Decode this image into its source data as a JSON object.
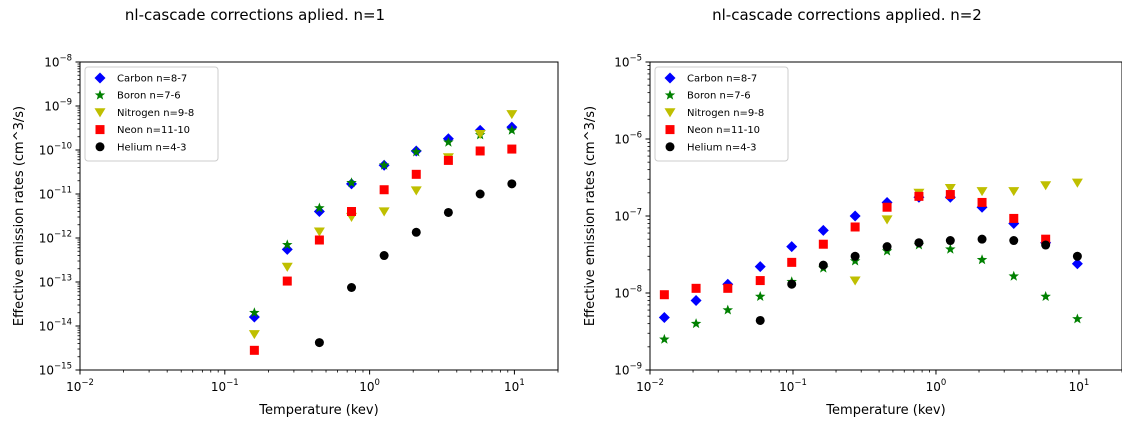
{
  "chart_data": [
    {
      "type": "scatter",
      "title": "nl-cascade corrections aplied. n=1",
      "xlabel": "Temperature (kev)",
      "ylabel": "Effective emission rates (cm^3/s)",
      "xscale": "log",
      "yscale": "log",
      "xlim": [
        0.01,
        20
      ],
      "ylim": [
        1e-15,
        1e-08
      ],
      "xticks": [
        {
          "base": "10",
          "exp": "−2",
          "value": 0.01
        },
        {
          "base": "10",
          "exp": "−1",
          "value": 0.1
        },
        {
          "base": "10",
          "exp": "0",
          "value": 1
        },
        {
          "base": "10",
          "exp": "1",
          "value": 10
        }
      ],
      "yticks": [
        {
          "base": "10",
          "exp": "−15",
          "value": 1e-15
        },
        {
          "base": "10",
          "exp": "−14",
          "value": 1e-14
        },
        {
          "base": "10",
          "exp": "−13",
          "value": 1e-13
        },
        {
          "base": "10",
          "exp": "−12",
          "value": 1e-12
        },
        {
          "base": "10",
          "exp": "−11",
          "value": 1e-11
        },
        {
          "base": "10",
          "exp": "−10",
          "value": 1e-10
        },
        {
          "base": "10",
          "exp": "−9",
          "value": 1e-09
        },
        {
          "base": "10",
          "exp": "−8",
          "value": 1e-08
        }
      ],
      "legend_position": "upper-left",
      "grid": false,
      "series": [
        {
          "name": "Carbon n=8-7",
          "marker": "diamond",
          "color": "#0000ff",
          "x": [
            0.16,
            0.27,
            0.45,
            0.75,
            1.26,
            2.1,
            3.5,
            5.8,
            9.6
          ],
          "y": [
            1.6e-14,
            5.5e-13,
            4e-12,
            1.7e-11,
            4.5e-11,
            9.5e-11,
            1.8e-10,
            2.8e-10,
            3.3e-10
          ]
        },
        {
          "name": "Boron n=7-6",
          "marker": "star",
          "color": "#008000",
          "x": [
            0.16,
            0.27,
            0.45,
            0.75,
            1.26,
            2.1,
            3.5,
            5.8,
            9.6
          ],
          "y": [
            2e-14,
            7e-13,
            4.8e-12,
            1.8e-11,
            4.5e-11,
            9e-11,
            1.5e-10,
            2.2e-10,
            2.8e-10
          ]
        },
        {
          "name": "Nitrogen n=9-8",
          "marker": "triangle-down",
          "color": "#bfbf00",
          "x": [
            0.16,
            0.27,
            0.45,
            0.75,
            1.26,
            2.1,
            3.5,
            5.8,
            9.6
          ],
          "y": [
            6.5e-15,
            2.2e-13,
            1.4e-12,
            3e-12,
            4e-12,
            1.2e-11,
            6.8e-11,
            2.3e-10,
            6.5e-10
          ]
        },
        {
          "name": "Neon n=11-10",
          "marker": "square",
          "color": "#ff0000",
          "x": [
            0.16,
            0.27,
            0.45,
            0.75,
            1.26,
            2.1,
            3.5,
            5.8,
            9.6
          ],
          "y": [
            2.8e-15,
            1.05e-13,
            9e-13,
            4e-12,
            1.25e-11,
            2.8e-11,
            5.8e-11,
            9.5e-11,
            1.05e-10
          ]
        },
        {
          "name": "Helium n=4-3",
          "marker": "circle",
          "color": "#000000",
          "x": [
            0.45,
            0.75,
            1.26,
            2.1,
            3.5,
            5.8,
            9.6
          ],
          "y": [
            4.2e-15,
            7.5e-14,
            4e-13,
            1.35e-12,
            3.8e-12,
            1e-11,
            1.7e-11
          ]
        }
      ]
    },
    {
      "type": "scatter",
      "title": "nl-cascade corrections applied. n=2",
      "xlabel": "Temperature (kev)",
      "ylabel": "Effective emission rates (cm^3/s)",
      "xscale": "log",
      "yscale": "log",
      "xlim": [
        0.01,
        20
      ],
      "ylim": [
        1e-09,
        1e-05
      ],
      "xticks": [
        {
          "base": "10",
          "exp": "−2",
          "value": 0.01
        },
        {
          "base": "10",
          "exp": "−1",
          "value": 0.1
        },
        {
          "base": "10",
          "exp": "0",
          "value": 1
        },
        {
          "base": "10",
          "exp": "1",
          "value": 10
        }
      ],
      "yticks": [
        {
          "base": "10",
          "exp": "−9",
          "value": 1e-09
        },
        {
          "base": "10",
          "exp": "−8",
          "value": 1e-08
        },
        {
          "base": "10",
          "exp": "−7",
          "value": 1e-07
        },
        {
          "base": "10",
          "exp": "−6",
          "value": 1e-06
        },
        {
          "base": "10",
          "exp": "−5",
          "value": 1e-05
        }
      ],
      "legend_position": "upper-left",
      "grid": false,
      "series": [
        {
          "name": "Carbon n=8-7",
          "marker": "diamond",
          "color": "#0000ff",
          "x": [
            0.0126,
            0.021,
            0.035,
            0.059,
            0.098,
            0.163,
            0.272,
            0.455,
            0.76,
            1.26,
            2.1,
            3.5,
            5.85,
            9.75
          ],
          "y": [
            4.8e-09,
            8e-09,
            1.3e-08,
            2.2e-08,
            4e-08,
            6.5e-08,
            1e-07,
            1.5e-07,
            1.75e-07,
            1.75e-07,
            1.3e-07,
            8e-08,
            4.5e-08,
            2.4e-08
          ]
        },
        {
          "name": "Boron n=7-6",
          "marker": "star",
          "color": "#008000",
          "x": [
            0.0126,
            0.021,
            0.035,
            0.059,
            0.098,
            0.163,
            0.272,
            0.455,
            0.76,
            1.26,
            2.1,
            3.5,
            5.85,
            9.75
          ],
          "y": [
            2.5e-09,
            4e-09,
            6e-09,
            9e-09,
            1.4e-08,
            2.1e-08,
            2.6e-08,
            3.5e-08,
            4.2e-08,
            3.7e-08,
            2.7e-08,
            1.65e-08,
            9e-09,
            4.6e-09
          ]
        },
        {
          "name": "Nitrogen n=9-8",
          "marker": "triangle-down",
          "color": "#bfbf00",
          "x": [
            0.272,
            0.455,
            0.76,
            1.26,
            2.1,
            3.5,
            5.85,
            9.75
          ],
          "y": [
            1.45e-08,
            9e-08,
            2e-07,
            2.3e-07,
            2.1e-07,
            2.1e-07,
            2.5e-07,
            2.7e-07
          ]
        },
        {
          "name": "Neon n=11-10",
          "marker": "square",
          "color": "#ff0000",
          "x": [
            0.0126,
            0.021,
            0.035,
            0.059,
            0.098,
            0.163,
            0.272,
            0.455,
            0.76,
            1.26,
            2.1,
            3.5,
            5.85
          ],
          "y": [
            9.5e-09,
            1.15e-08,
            1.15e-08,
            1.45e-08,
            2.5e-08,
            4.3e-08,
            7.2e-08,
            1.3e-07,
            1.8e-07,
            1.9e-07,
            1.5e-07,
            9.3e-08,
            5e-08
          ]
        },
        {
          "name": "Helium n=4-3",
          "marker": "circle",
          "color": "#000000",
          "x": [
            0.059,
            0.098,
            0.163,
            0.272,
            0.455,
            0.76,
            1.26,
            2.1,
            3.5,
            5.85,
            9.75
          ],
          "y": [
            4.4e-09,
            1.3e-08,
            2.3e-08,
            3e-08,
            4e-08,
            4.5e-08,
            4.8e-08,
            5e-08,
            4.8e-08,
            4.2e-08,
            3e-08
          ]
        }
      ]
    }
  ]
}
